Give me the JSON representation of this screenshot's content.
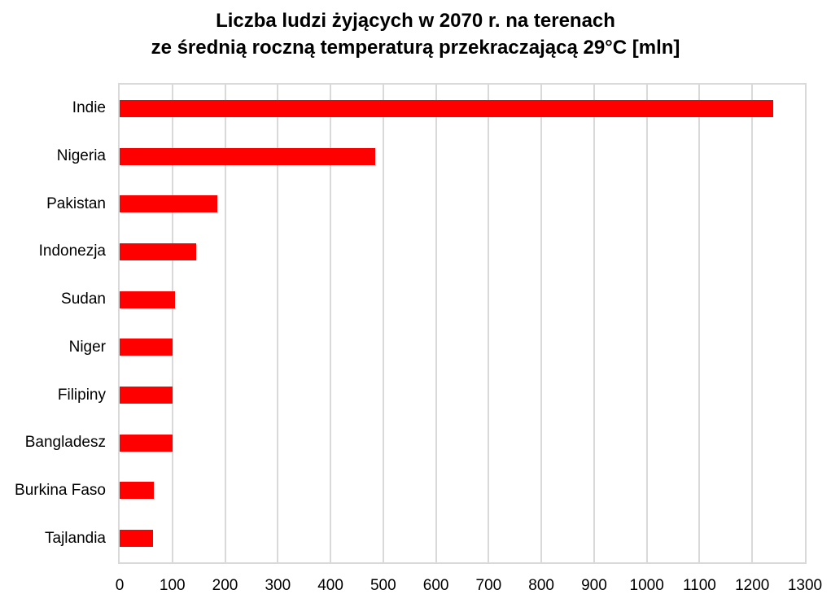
{
  "title": {
    "line1": "Liczba ludzi żyjących w 2070 r. na terenach",
    "line2": "ze średnią roczną temperaturą przekraczającą 29°C [mln]"
  },
  "chart_data": {
    "type": "bar",
    "orientation": "horizontal",
    "title": "Liczba ludzi żyjących w 2070 r. na terenach ze średnią roczną temperaturą przekraczającą 29°C [mln]",
    "categories": [
      "Indie",
      "Nigeria",
      "Pakistan",
      "Indonezja",
      "Sudan",
      "Niger",
      "Filipiny",
      "Bangladesz",
      "Burkina Faso",
      "Tajlandia"
    ],
    "values": [
      1240,
      485,
      185,
      145,
      105,
      100,
      100,
      100,
      65,
      63
    ],
    "xlabel": "",
    "ylabel": "",
    "xlim": [
      0,
      1300
    ],
    "xticks": [
      0,
      100,
      200,
      300,
      400,
      500,
      600,
      700,
      800,
      900,
      1000,
      1100,
      1200,
      1300
    ],
    "grid": true,
    "legend": false,
    "bar_color": "#FF0000",
    "grid_color": "#D9D9D9",
    "text_color": "#000000",
    "background": "#FFFFFF"
  }
}
